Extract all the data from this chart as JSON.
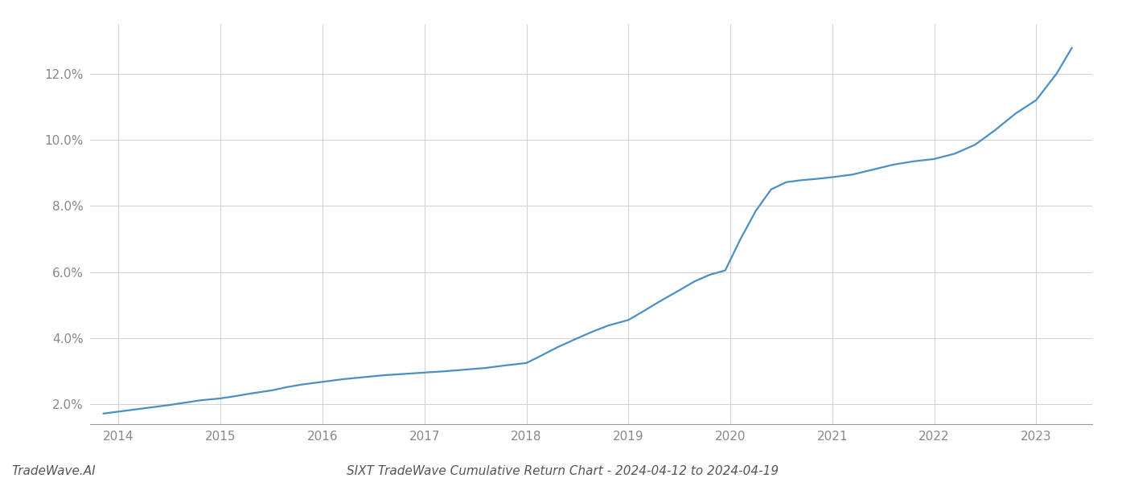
{
  "title": "SIXT TradeWave Cumulative Return Chart - 2024-04-12 to 2024-04-19",
  "watermark": "TradeWave.AI",
  "line_color": "#4a90c4",
  "background_color": "#ffffff",
  "grid_color": "#cccccc",
  "x_values": [
    2013.85,
    2014.0,
    2014.15,
    2014.3,
    2014.5,
    2014.65,
    2014.8,
    2015.0,
    2015.15,
    2015.3,
    2015.5,
    2015.65,
    2015.8,
    2016.0,
    2016.2,
    2016.4,
    2016.6,
    2016.8,
    2017.0,
    2017.2,
    2017.4,
    2017.6,
    2017.8,
    2018.0,
    2018.15,
    2018.3,
    2018.5,
    2018.65,
    2018.8,
    2019.0,
    2019.15,
    2019.3,
    2019.5,
    2019.65,
    2019.8,
    2019.95,
    2020.1,
    2020.25,
    2020.4,
    2020.55,
    2020.7,
    2020.85,
    2021.0,
    2021.2,
    2021.4,
    2021.6,
    2021.8,
    2022.0,
    2022.2,
    2022.4,
    2022.6,
    2022.8,
    2023.0,
    2023.2,
    2023.35
  ],
  "y_values": [
    1.72,
    1.78,
    1.84,
    1.9,
    1.98,
    2.05,
    2.12,
    2.18,
    2.25,
    2.33,
    2.42,
    2.52,
    2.6,
    2.68,
    2.76,
    2.82,
    2.88,
    2.92,
    2.96,
    3.0,
    3.05,
    3.1,
    3.18,
    3.25,
    3.48,
    3.72,
    4.0,
    4.2,
    4.38,
    4.55,
    4.82,
    5.1,
    5.45,
    5.72,
    5.92,
    6.05,
    7.0,
    7.85,
    8.5,
    8.72,
    8.78,
    8.82,
    8.87,
    8.95,
    9.1,
    9.25,
    9.35,
    9.42,
    9.58,
    9.85,
    10.3,
    10.8,
    11.2,
    12.0,
    12.78
  ],
  "ylim": [
    1.4,
    13.5
  ],
  "yticks": [
    2.0,
    4.0,
    6.0,
    8.0,
    10.0,
    12.0
  ],
  "xlim": [
    2013.72,
    2023.55
  ],
  "xticks": [
    2014,
    2015,
    2016,
    2017,
    2018,
    2019,
    2020,
    2021,
    2022,
    2023
  ],
  "line_width": 1.6,
  "title_fontsize": 11,
  "watermark_fontsize": 11,
  "tick_fontsize": 11,
  "tick_color": "#888888",
  "axis_color": "#999999"
}
